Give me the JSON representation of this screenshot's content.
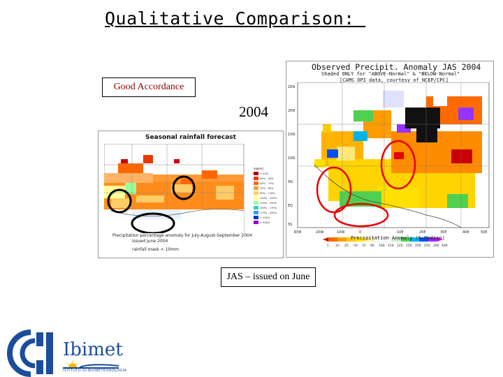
{
  "slide": {
    "title": "Qualitative Comparison: ",
    "good_accordance": "Good Accordance",
    "year": "2004",
    "issued": "JAS – issued on June"
  },
  "forecast_map": {
    "title": "Seasonal rainfall forecast",
    "caption_line1": "Precipitation percentage anomaly for July-August-September 2004",
    "caption_line2": "issued June 2004",
    "caption_line3": "rainfall mask < 10mm",
    "legend_title": "legend",
    "legend_entries": [
      "< 25%",
      "25% - 50%",
      "50% - 75%",
      "75% - 90%",
      "90% - 110%",
      "110% - 125%",
      "125% - 150%",
      "150% - 175%",
      "175% - 200%",
      "> 200%",
      "> 300%"
    ],
    "legend_colors": [
      "#b30000",
      "#e63900",
      "#ff6600",
      "#ff9933",
      "#ffcc66",
      "#ffff99",
      "#99ff99",
      "#33cccc",
      "#3399ff",
      "#0033cc",
      "#9900cc"
    ]
  },
  "observed_map": {
    "title": "Observed Precipit. Anomaly JAS 2004",
    "subtitle1": "Shaded ONLY for \"ABOVE-Normal\" & \"BELOW-Normal\"",
    "subtitle2": "[CAMS_OPI data, courtesy of NCEP/CPC]",
    "lat_labels": [
      "25N",
      "20N",
      "15N",
      "10N",
      "5N",
      "EQ",
      "5S"
    ],
    "lon_labels": [
      "30W",
      "20W",
      "10W",
      "0",
      "10E",
      "20E",
      "30E",
      "40E",
      "50E"
    ],
    "legend_values": [
      "1",
      "10",
      "25",
      "50",
      "75",
      "90",
      "100",
      "110",
      "125",
      "150",
      "200",
      "250",
      "300",
      "400"
    ],
    "legend_colors": [
      "#d40000",
      "#ff6a00",
      "#ff9c00",
      "#ffc800",
      "#ffe000",
      "#fff3a0",
      "#ffffff",
      "#ffffff",
      "#c8f0c8",
      "#50d050",
      "#00b4e6",
      "#0050ff",
      "#9632ff",
      "#e600e6"
    ],
    "legend_title": "Precipitation Anomaly (%-Median)"
  },
  "logo": {
    "name": "Ibimet",
    "subtitle": "ISTITUTO DI BIOMETEOROLOGIA"
  }
}
